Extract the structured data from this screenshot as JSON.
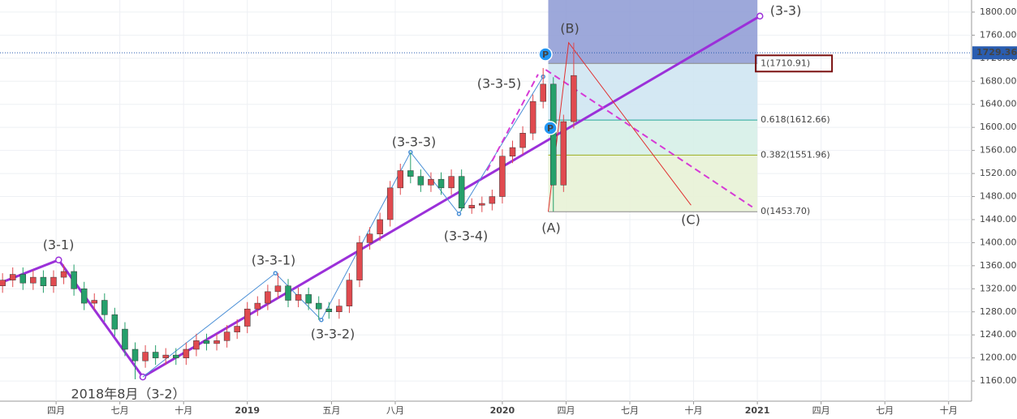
{
  "chart_data": {
    "type": "candlestick",
    "up_color": "#e04a4f",
    "down_color": "#26a06b",
    "xlim": [
      2018.03,
      2021.84
    ],
    "ylim": [
      1125,
      1821
    ],
    "xticks": [
      {
        "value": 2018.25,
        "label": "四月"
      },
      {
        "value": 2018.5,
        "label": "七月"
      },
      {
        "value": 2018.75,
        "label": "十月"
      },
      2019,
      {
        "value": 2019.33,
        "label": "五月"
      },
      {
        "value": 2019.58,
        "label": "八月"
      },
      2020,
      {
        "value": 2020.25,
        "label": "四月"
      },
      {
        "value": 2020.5,
        "label": "七月"
      },
      {
        "value": 2020.75,
        "label": "十月"
      },
      2021,
      {
        "value": 2021.25,
        "label": "四月"
      },
      {
        "value": 2021.5,
        "label": "七月"
      },
      {
        "value": 2021.75,
        "label": "十月"
      }
    ],
    "yticks": [
      {
        "value": 1160,
        "label": "1160.00"
      },
      {
        "value": 1200,
        "label": "1200.00"
      },
      {
        "value": 1240,
        "label": "1240.00"
      },
      {
        "value": 1280,
        "label": "1280.00"
      },
      {
        "value": 1320,
        "label": "1320.00"
      },
      {
        "value": 1360,
        "label": "1360.00"
      },
      {
        "value": 1400,
        "label": "1400.00"
      },
      {
        "value": 1440,
        "label": "1440.00"
      },
      {
        "value": 1480,
        "label": "1480.00"
      },
      {
        "value": 1520,
        "label": "1520.00"
      },
      {
        "value": 1560,
        "label": "1560.00"
      },
      {
        "value": 1600,
        "label": "1600.00"
      },
      {
        "value": 1640,
        "label": "1640.00"
      },
      {
        "value": 1680,
        "label": "1680.00"
      },
      {
        "value": 1720,
        "label": "1720.00"
      },
      {
        "value": 1760,
        "label": "1760.00"
      },
      {
        "value": 1800,
        "label": "1800.00"
      }
    ],
    "grid": true,
    "x": [
      2018.04,
      2018.08,
      2018.12,
      2018.16,
      2018.2,
      2018.24,
      2018.28,
      2018.32,
      2018.36,
      2018.4,
      2018.44,
      2018.48,
      2018.52,
      2018.56,
      2018.6,
      2018.64,
      2018.68,
      2018.72,
      2018.76,
      2018.8,
      2018.84,
      2018.88,
      2018.92,
      2018.96,
      2019,
      2019.04,
      2019.08,
      2019.12,
      2019.16,
      2019.2,
      2019.24,
      2019.28,
      2019.32,
      2019.36,
      2019.4,
      2019.44,
      2019.48,
      2019.52,
      2019.56,
      2019.6,
      2019.64,
      2019.68,
      2019.72,
      2019.76,
      2019.8,
      2019.84,
      2019.88,
      2019.92,
      2019.96,
      2020,
      2020.04,
      2020.08,
      2020.12,
      2020.16,
      2020.2,
      2020.24,
      2020.28
    ],
    "open": [
      1325,
      1335,
      1345,
      1330,
      1340,
      1325,
      1340,
      1350,
      1320,
      1295,
      1300,
      1275,
      1250,
      1215,
      1195,
      1210,
      1200,
      1205,
      1200,
      1215,
      1230,
      1225,
      1230,
      1245,
      1255,
      1285,
      1295,
      1315,
      1325,
      1300,
      1310,
      1295,
      1285,
      1280,
      1290,
      1335,
      1400,
      1415,
      1440,
      1495,
      1525,
      1515,
      1500,
      1510,
      1495,
      1515,
      1460,
      1465,
      1468,
      1480,
      1550,
      1565,
      1590,
      1645,
      1675,
      1500,
      1610
    ],
    "high": [
      1347,
      1357,
      1357,
      1352,
      1352,
      1352,
      1362,
      1362,
      1332,
      1312,
      1312,
      1287,
      1262,
      1227,
      1222,
      1222,
      1217,
      1217,
      1227,
      1242,
      1242,
      1242,
      1257,
      1267,
      1297,
      1307,
      1327,
      1347,
      1337,
      1322,
      1322,
      1307,
      1297,
      1302,
      1347,
      1412,
      1427,
      1452,
      1507,
      1537,
      1557,
      1527,
      1522,
      1522,
      1527,
      1527,
      1477,
      1480,
      1492,
      1562,
      1577,
      1602,
      1657,
      1703,
      1687,
      1622,
      1747
    ],
    "low": [
      1313,
      1323,
      1318,
      1318,
      1313,
      1313,
      1328,
      1308,
      1283,
      1283,
      1263,
      1238,
      1203,
      1163,
      1183,
      1188,
      1188,
      1188,
      1188,
      1203,
      1213,
      1213,
      1218,
      1233,
      1243,
      1273,
      1283,
      1303,
      1288,
      1288,
      1283,
      1266,
      1268,
      1268,
      1278,
      1323,
      1388,
      1403,
      1428,
      1483,
      1503,
      1488,
      1488,
      1483,
      1483,
      1455,
      1450,
      1453,
      1456,
      1468,
      1538,
      1553,
      1578,
      1633,
      1454,
      1488,
      1598
    ],
    "close": [
      1335,
      1345,
      1330,
      1340,
      1325,
      1340,
      1350,
      1320,
      1295,
      1300,
      1275,
      1250,
      1215,
      1195,
      1210,
      1200,
      1205,
      1200,
      1215,
      1230,
      1225,
      1230,
      1245,
      1255,
      1285,
      1295,
      1315,
      1325,
      1300,
      1310,
      1295,
      1285,
      1280,
      1290,
      1335,
      1400,
      1415,
      1440,
      1495,
      1525,
      1515,
      1500,
      1510,
      1495,
      1515,
      1460,
      1465,
      1468,
      1480,
      1550,
      1565,
      1590,
      1645,
      1675,
      1500,
      1610,
      1690
    ],
    "wave_lines": [
      {
        "color": "#9b30d9",
        "width": 3,
        "dash": false,
        "points": [
          [
            2018.03,
            1330
          ],
          [
            2018.26,
            1370
          ],
          [
            2018.59,
            1167
          ],
          [
            2021.01,
            1793
          ]
        ]
      },
      {
        "color": "#4a8fd6",
        "width": 1,
        "dash": false,
        "points": [
          [
            2018.59,
            1167
          ],
          [
            2019.11,
            1347
          ],
          [
            2019.29,
            1266
          ],
          [
            2019.64,
            1557
          ],
          [
            2019.83,
            1450
          ],
          [
            2020.16,
            1688
          ]
        ]
      },
      {
        "color": "#d63ad6",
        "width": 2,
        "dash": true,
        "points": [
          [
            2019.94,
            1525
          ],
          [
            2020.14,
            1692
          ]
        ]
      },
      {
        "color": "#d63ad6",
        "width": 2,
        "dash": true,
        "points": [
          [
            2020.17,
            1700
          ],
          [
            2020.98,
            1462
          ]
        ]
      },
      {
        "color": "#e03030",
        "width": 1,
        "dash": false,
        "points": [
          [
            2020.18,
            1453.7
          ],
          [
            2020.26,
            1747
          ],
          [
            2020.74,
            1465
          ]
        ]
      }
    ],
    "fibonacci": {
      "x_range": [
        2020.18,
        2021.0
      ],
      "top_color": "#8c99d4",
      "levels": [
        {
          "ratio": 1,
          "price": 1710.91,
          "label": "1(1710.91)",
          "color": "#888888",
          "fill": "#cfe6f2"
        },
        {
          "ratio": 0.618,
          "price": 1612.66,
          "label": "0.618(1612.66)",
          "color": "#26a69a",
          "fill": "#d6efe8"
        },
        {
          "ratio": 0.382,
          "price": 1551.96,
          "label": "0.382(1551.96)",
          "color": "#9aae20",
          "fill": "#e8f2d6"
        },
        {
          "ratio": 0,
          "price": 1453.7,
          "label": "0(1453.70)",
          "color": "#888888"
        }
      ]
    },
    "current_price": 1729.36,
    "annotations": [
      {
        "text": "(3-1)",
        "color": "#9b30d9"
      },
      {
        "text": "2018年8月（3-2）",
        "color": "#2a9d9d"
      },
      {
        "text": "(3-3-1)",
        "color": "#4a8fd6"
      },
      {
        "text": "(3-3-2)",
        "color": "#4a8fd6"
      },
      {
        "text": "(3-3-3)",
        "color": "#4a8fd6"
      },
      {
        "text": "(3-3-4)",
        "color": "#4a8fd6"
      },
      {
        "text": "(3-3-5)",
        "color": "#4a8fd6"
      },
      {
        "text": "(3-3)",
        "color": "#9b30d9"
      },
      {
        "text": "(B)",
        "color": "#b01c1c"
      },
      {
        "text": "(A)",
        "color": "#b01c1c"
      },
      {
        "text": "(C)",
        "color": "#b01c1c"
      }
    ],
    "markers": [
      "P",
      "P"
    ]
  }
}
